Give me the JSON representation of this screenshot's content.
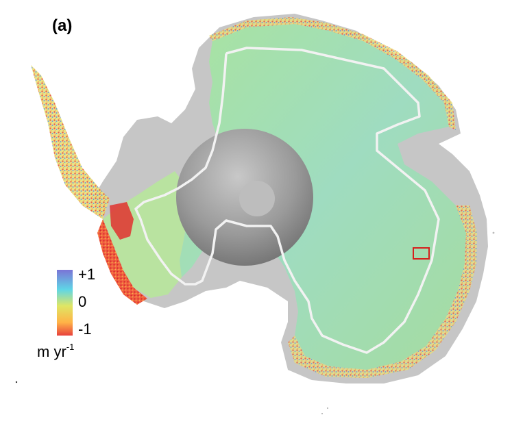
{
  "figure": {
    "panel_label": "(a)"
  },
  "colorbar": {
    "max_label": "+1",
    "mid_label": "0",
    "min_label": "-1",
    "units_base": "m yr",
    "units_exponent": "-1",
    "colors": [
      "#7b74d6",
      "#5fd6e6",
      "#dfe664",
      "#ffb347",
      "#e8413d"
    ]
  },
  "map_colors": {
    "land_background": "#c6c6c6",
    "interior_positive": "#8fdcc9",
    "interior_neutral": "#b2e3a4",
    "coast_negative": "#e84a3c",
    "boundary_line": "#f2f2f2",
    "selection_box": "#d6201c"
  }
}
